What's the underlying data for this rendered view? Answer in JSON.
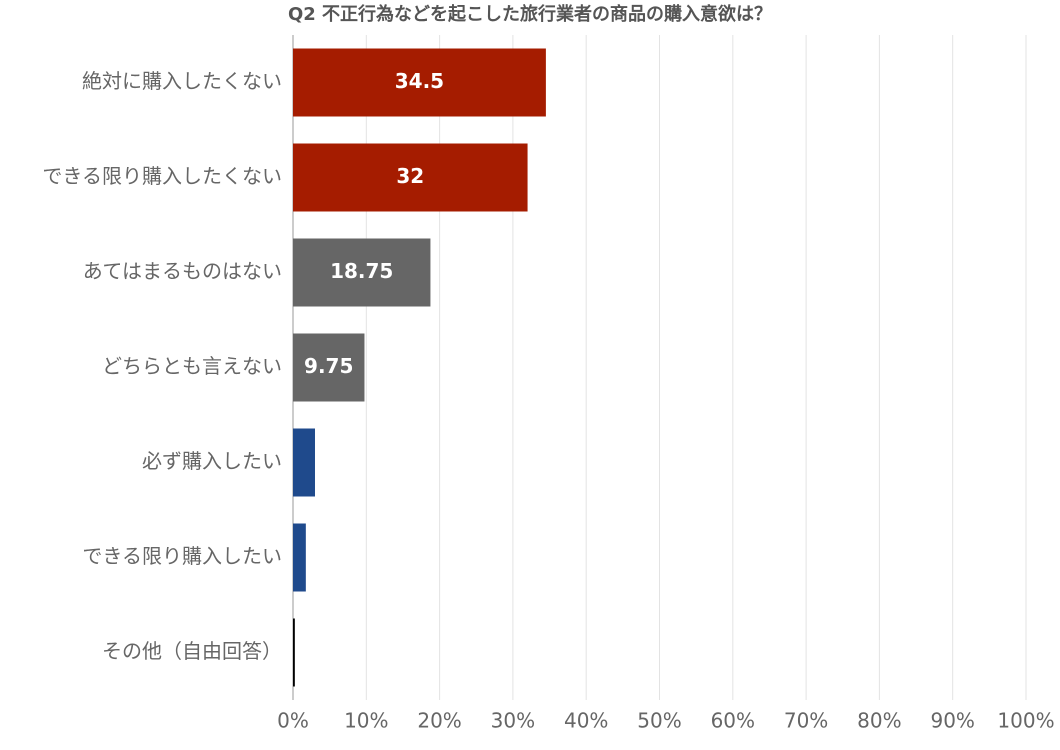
{
  "chart_data": {
    "type": "barh",
    "title": "Q2 不正行為などを起こした旅行業者の商品の購入意欲は？",
    "categories": [
      "絶対に購入したくない",
      "できる限り購入したくない",
      "あてはまるものはない",
      "どちらとも言えない",
      "必ず購入したい",
      "できる限り購入したい",
      "その他（自由回答）"
    ],
    "values": [
      34.5,
      32,
      18.75,
      9.75,
      3,
      1.75,
      0.25
    ],
    "value_labels": [
      "34.5",
      "32",
      "18.75",
      "9.75",
      null,
      null,
      null
    ],
    "colors": [
      "#a51c00",
      "#a51c00",
      "#666666",
      "#666666",
      "#1f4a8c",
      "#1f4a8c",
      "#000000"
    ],
    "xlim": [
      0,
      100
    ],
    "xticks": [
      {
        "value": 0,
        "label": "0%"
      },
      {
        "value": 10,
        "label": "10%"
      },
      {
        "value": 20,
        "label": "20%"
      },
      {
        "value": 30,
        "label": "30%"
      },
      {
        "value": 40,
        "label": "40%"
      },
      {
        "value": 50,
        "label": "50%"
      },
      {
        "value": 60,
        "label": "60%"
      },
      {
        "value": 70,
        "label": "70%"
      },
      {
        "value": 80,
        "label": "80%"
      },
      {
        "value": 90,
        "label": "90%"
      },
      {
        "value": 100,
        "label": "100%"
      }
    ],
    "grid": true
  }
}
